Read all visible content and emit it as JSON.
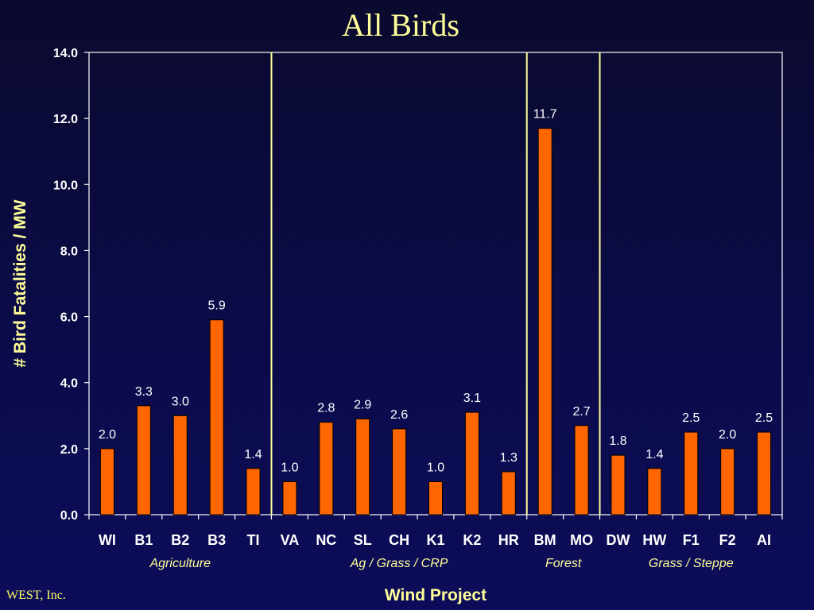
{
  "chart_data": {
    "type": "bar",
    "title": "All Birds",
    "xlabel": "Wind Project",
    "ylabel": "# Bird Fatalities / MW",
    "ylim": [
      0,
      14
    ],
    "yticks": [
      "0.0",
      "2.0",
      "4.0",
      "6.0",
      "8.0",
      "10.0",
      "12.0",
      "14.0"
    ],
    "categories": [
      "WI",
      "B1",
      "B2",
      "B3",
      "TI",
      "VA",
      "NC",
      "SL",
      "CH",
      "K1",
      "K2",
      "HR",
      "BM",
      "MO",
      "DW",
      "HW",
      "F1",
      "F2",
      "AI"
    ],
    "values": [
      2.0,
      3.3,
      3.0,
      5.9,
      1.4,
      1.0,
      2.8,
      2.9,
      2.6,
      1.0,
      3.1,
      1.3,
      11.7,
      2.7,
      1.8,
      1.4,
      2.5,
      2.0,
      2.5
    ],
    "value_labels": [
      "2.0",
      "3.3",
      "3.0",
      "5.9",
      "1.4",
      "1.0",
      "2.8",
      "2.9",
      "2.6",
      "1.0",
      "3.1",
      "1.3",
      "11.7",
      "2.7",
      "1.8",
      "1.4",
      "2.5",
      "2.0",
      "2.5"
    ],
    "groups": [
      {
        "label": "Agriculture",
        "start": 0,
        "end": 4
      },
      {
        "label": "Ag / Grass / CRP",
        "start": 5,
        "end": 11
      },
      {
        "label": "Forest",
        "start": 12,
        "end": 13
      },
      {
        "label": "Grass / Steppe",
        "start": 14,
        "end": 18
      }
    ],
    "grid": false,
    "legend": "none",
    "colors": {
      "bar": "#ff6600",
      "bar_edge": "#000000",
      "axis": "#ffffff",
      "separator": "#ffff99"
    }
  },
  "footer": {
    "text": "WEST, Inc."
  }
}
